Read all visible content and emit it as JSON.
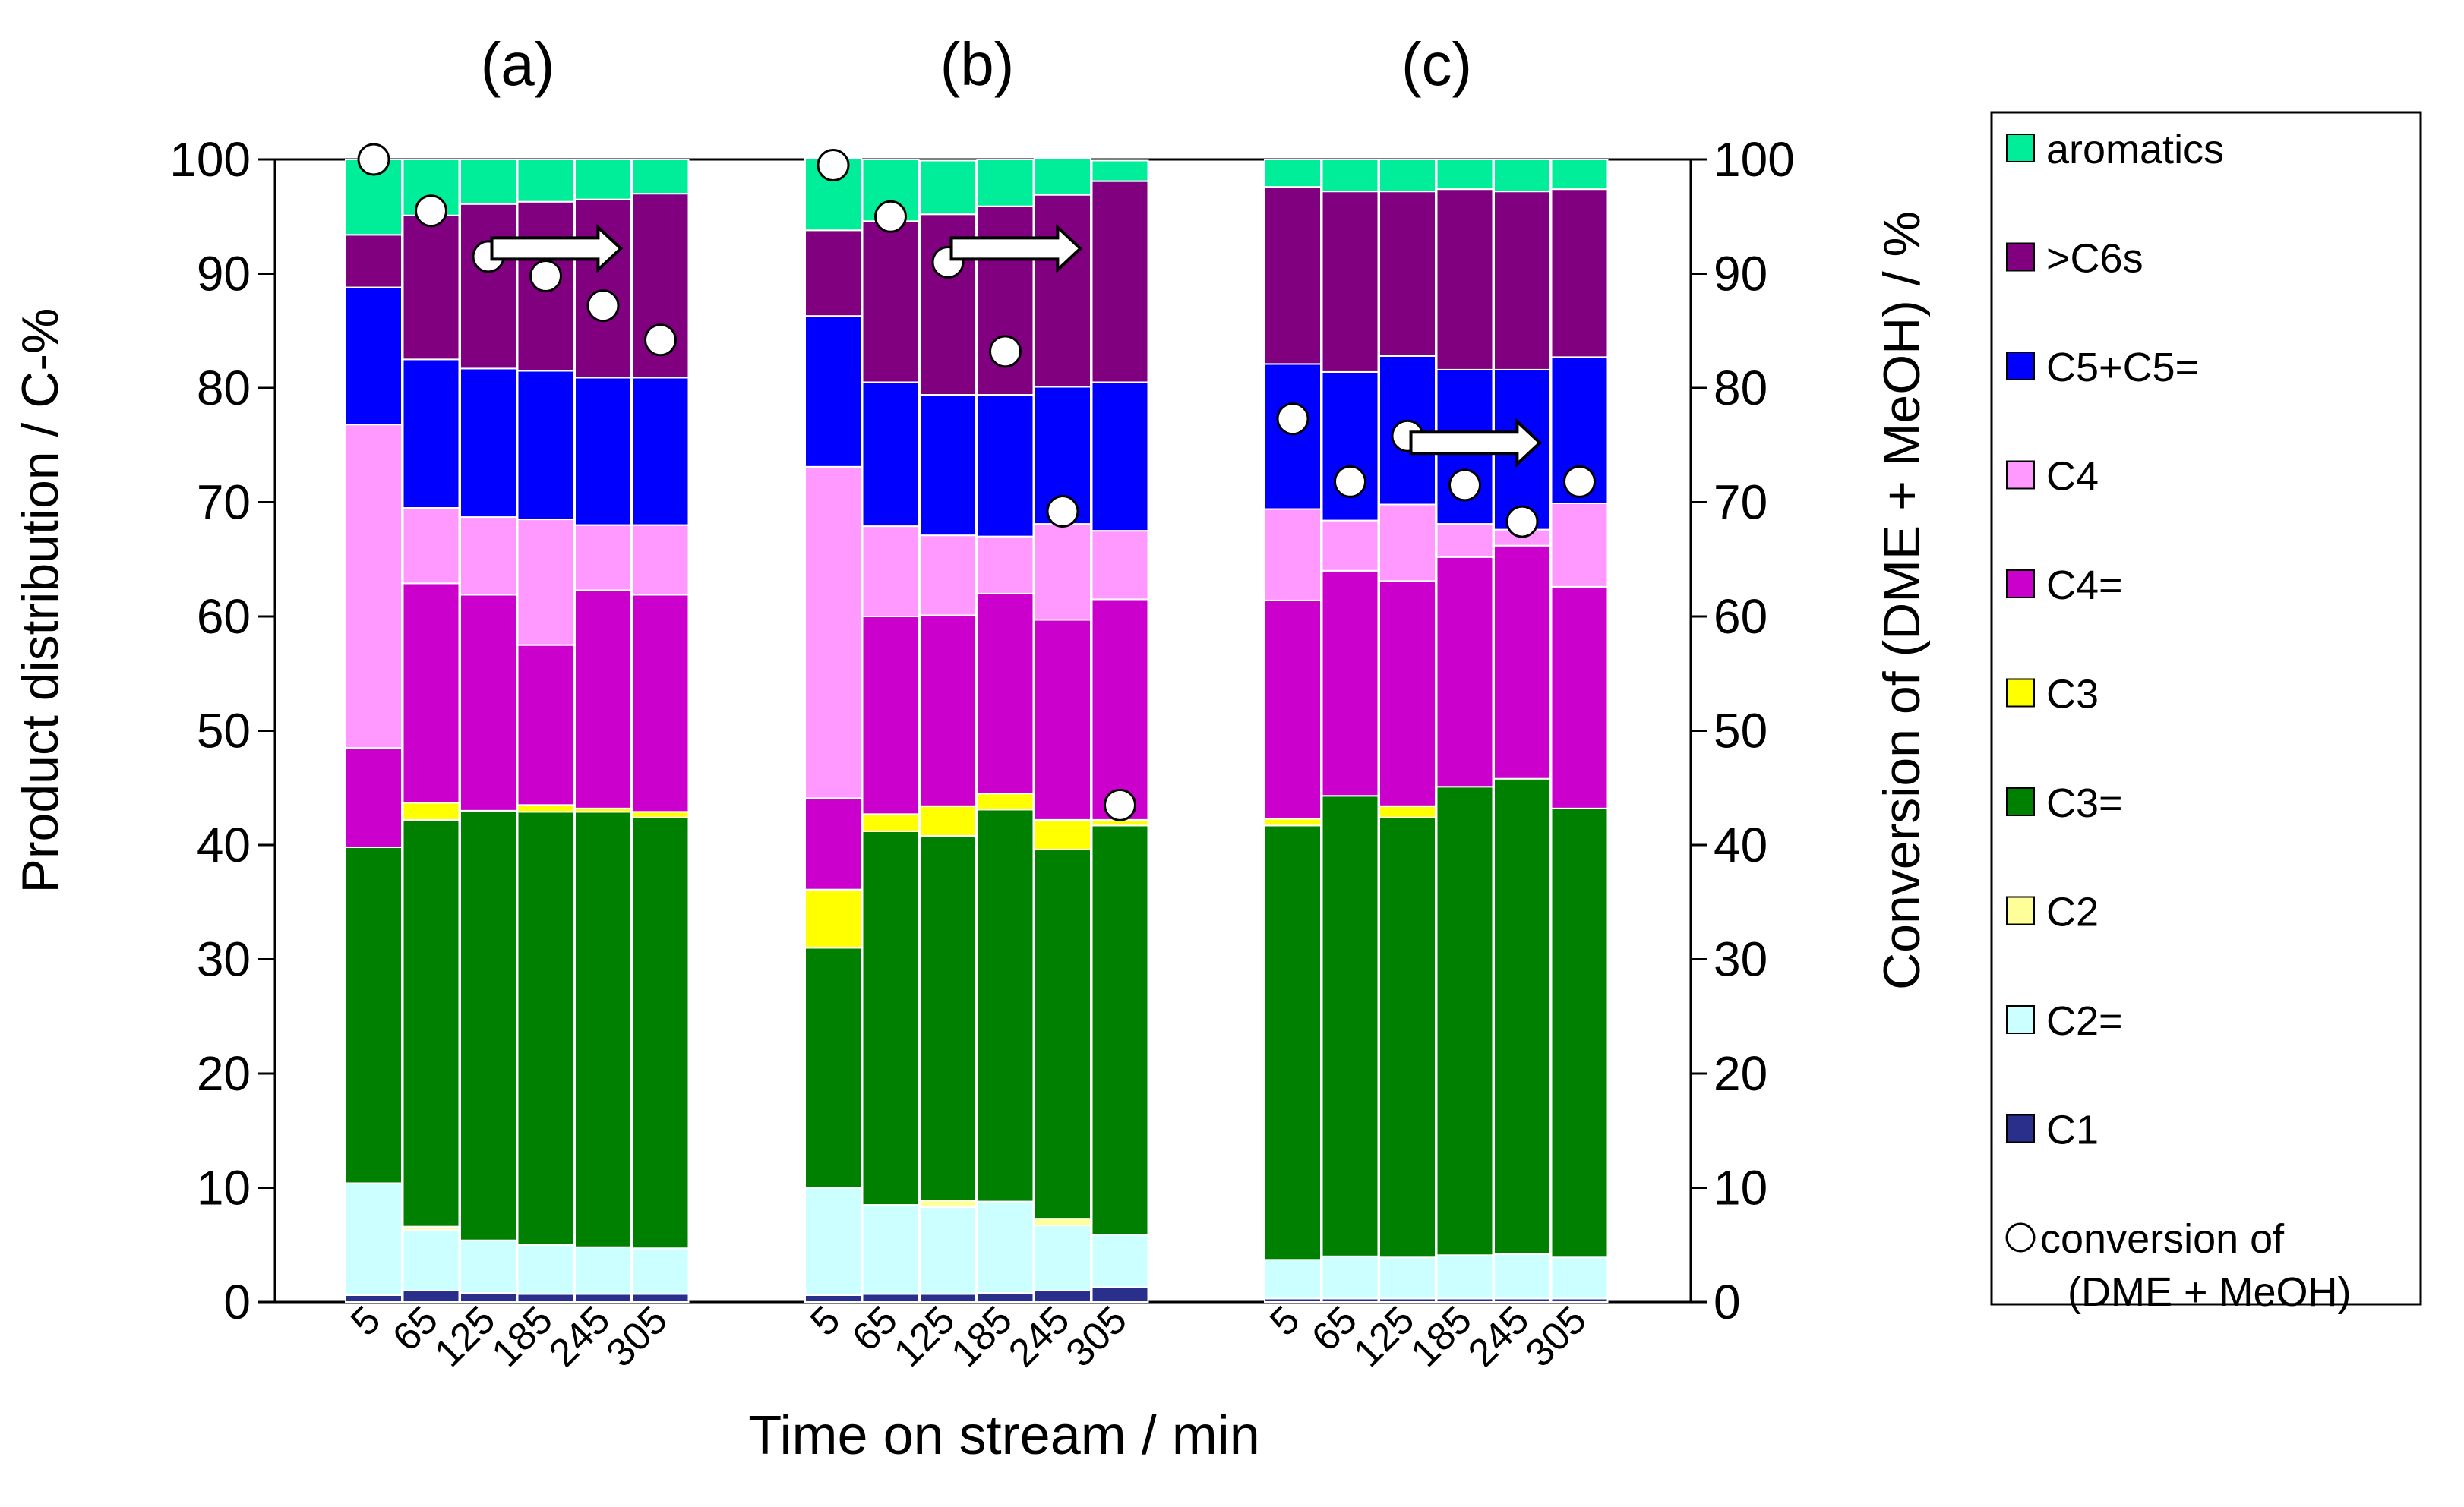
{
  "chart_data": {
    "type": "bar",
    "stacked": true,
    "panels": [
      {
        "label": "(a)",
        "categories": [
          "5",
          "65",
          "125",
          "185",
          "245",
          "305"
        ],
        "stacks": [
          [
            0.6,
            9.8,
            0,
            29.4,
            0,
            8.7,
            28.3,
            12.0,
            4.6,
            6.6
          ],
          [
            1.0,
            5.3,
            0.3,
            35.6,
            1.5,
            19.2,
            6.6,
            13.0,
            12.6,
            4.9
          ],
          [
            0.8,
            4.6,
            0,
            37.6,
            0,
            18.9,
            6.8,
            13.0,
            14.4,
            3.9
          ],
          [
            0.7,
            4.3,
            0,
            37.9,
            0.6,
            14.0,
            11.0,
            13.0,
            14.8,
            3.7
          ],
          [
            0.7,
            4.1,
            0,
            38.1,
            0.3,
            19.1,
            5.7,
            12.9,
            15.6,
            3.5
          ],
          [
            0.7,
            4.0,
            0,
            37.7,
            0.5,
            19.0,
            6.1,
            12.9,
            16.1,
            3.0
          ]
        ],
        "conversion": [
          100,
          95.5,
          91.5,
          89.8,
          87.2,
          84.2
        ]
      },
      {
        "label": "(b)",
        "categories": [
          "5",
          "65",
          "125",
          "185",
          "245",
          "305"
        ],
        "stacks": [
          [
            0.6,
            9.4,
            0,
            21.0,
            5.1,
            8.0,
            29.0,
            13.2,
            7.5,
            6.3
          ],
          [
            0.7,
            7.8,
            0,
            32.7,
            1.5,
            17.3,
            7.9,
            12.6,
            14.1,
            5.4
          ],
          [
            0.7,
            7.6,
            0.6,
            31.9,
            2.6,
            16.7,
            7.0,
            12.3,
            15.8,
            4.7
          ],
          [
            0.8,
            8.0,
            0,
            34.3,
            1.4,
            17.5,
            5.0,
            12.4,
            16.5,
            4.1
          ],
          [
            1.0,
            5.7,
            0.6,
            32.3,
            2.6,
            17.5,
            8.4,
            12.0,
            16.8,
            3.2
          ],
          [
            1.3,
            4.6,
            0,
            35.8,
            0.5,
            19.3,
            6.0,
            13.0,
            17.6,
            1.8
          ]
        ],
        "conversion": [
          99.5,
          95,
          91,
          83.2,
          69.2,
          43.5
        ]
      },
      {
        "label": "(c)",
        "categories": [
          "5",
          "65",
          "125",
          "185",
          "245",
          "305"
        ],
        "stacks": [
          [
            0.3,
            3.4,
            0,
            38.0,
            0.6,
            19.1,
            8.0,
            12.7,
            15.5,
            2.4
          ],
          [
            0.3,
            3.7,
            0,
            40.3,
            0,
            19.7,
            4.4,
            13.0,
            15.8,
            2.8
          ],
          [
            0.3,
            3.6,
            0,
            38.5,
            1.0,
            19.7,
            6.7,
            13.0,
            14.4,
            2.8
          ],
          [
            0.3,
            3.8,
            0,
            41.0,
            0,
            20.1,
            2.9,
            13.5,
            15.8,
            2.6
          ],
          [
            0.3,
            3.9,
            0,
            41.6,
            0,
            20.4,
            1.4,
            14.0,
            15.6,
            2.8
          ],
          [
            0.3,
            3.6,
            0,
            39.3,
            0,
            19.4,
            7.3,
            12.8,
            14.7,
            2.6
          ]
        ],
        "conversion": [
          77.3,
          71.8,
          75.8,
          71.5,
          68.3,
          71.8
        ]
      }
    ],
    "series": [
      {
        "name": "C1",
        "color": "#2B2F8C"
      },
      {
        "name": "C2=",
        "color": "#CCFFFF"
      },
      {
        "name": "C2",
        "color": "#FFFF99"
      },
      {
        "name": "C3=",
        "color": "#008000"
      },
      {
        "name": "C3",
        "color": "#FFFF00"
      },
      {
        "name": "C4=",
        "color": "#CC00CC"
      },
      {
        "name": "C4",
        "color": "#FF99FF"
      },
      {
        "name": "C5+C5=",
        "color": "#0000FF"
      },
      {
        "name": ">C6s",
        "color": "#800080"
      },
      {
        "name": "aromatics",
        "color": "#00EE99"
      }
    ],
    "scatter_series": {
      "name": "conversion of (DME + MeOH)",
      "name_lines": [
        "conversion of",
        "(DME + MeOH)"
      ]
    },
    "ylabel": "Product distribution / C-%",
    "y2label": "Conversion of (DME + MeOH) / %",
    "xlabel": "Time on stream / min",
    "ylim": [
      0,
      100
    ],
    "y2lim": [
      0,
      100
    ],
    "yticks": [
      "0",
      "10",
      "20",
      "30",
      "40",
      "50",
      "60",
      "70",
      "80",
      "90",
      "100"
    ],
    "legend_position": "right",
    "legend_order": [
      "aromatics",
      ">C6s",
      "C5+C5=",
      "C4",
      "C4=",
      "C3",
      "C3=",
      "C2",
      "C2=",
      "C1",
      "conversion of (DME + MeOH)"
    ]
  }
}
